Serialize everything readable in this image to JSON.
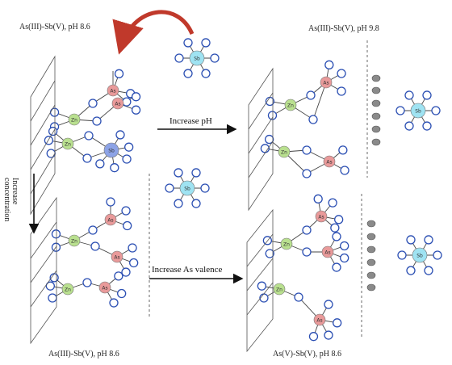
{
  "panels": {
    "top_left_caption": "As(III)-Sb(V), pH 8.6",
    "top_right_caption": "As(III)-Sb(V), pH 9.8",
    "bottom_left_caption": "As(III)-Sb(V), pH 8.6",
    "bottom_right_caption": "As(V)-Sb(V), pH 8.6"
  },
  "arrows": {
    "horizontal_top": "Increase pH",
    "horizontal_bottom": "Increase As valence",
    "vertical_line1": "Increase",
    "vertical_line2": "concentration"
  },
  "atoms": {
    "zn": "Zn",
    "as": "As",
    "sb": "Sb"
  },
  "colors": {
    "zn": "#b9e08f",
    "as": "#e99a9a",
    "sb_free": "#9fe3f2",
    "sb_bound": "#8da3e6",
    "oxygen_stroke": "#2b4fb3",
    "curved_arrow": "#c0392b",
    "cation": "#8a8a8a"
  }
}
